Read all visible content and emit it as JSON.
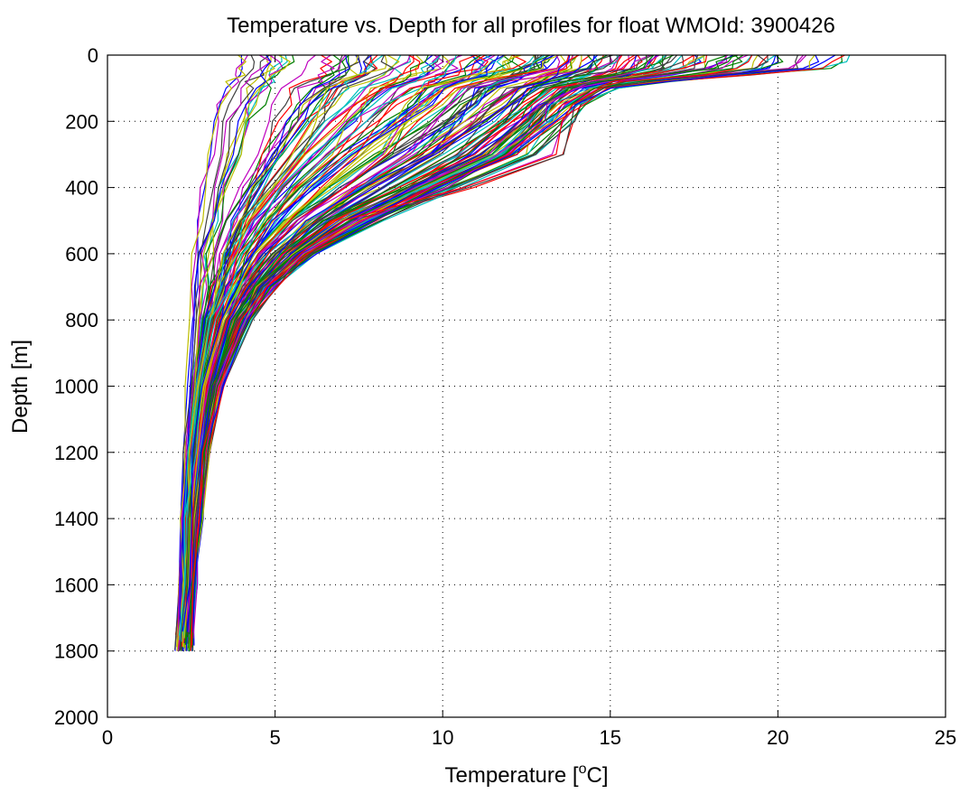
{
  "chart_data": {
    "type": "line",
    "title": "Temperature vs. Depth for all profiles for float WMOId: 3900426",
    "xlabel_text": "Temperature [",
    "xlabel_superscript": "o",
    "xlabel_unit": "C]",
    "ylabel": "Depth [m]",
    "xlim": [
      0,
      25
    ],
    "ylim": [
      0,
      2000
    ],
    "y_reversed": true,
    "grid": true,
    "x_ticks": [
      0,
      5,
      10,
      15,
      20,
      25
    ],
    "y_ticks": [
      0,
      200,
      400,
      600,
      800,
      1000,
      1200,
      1400,
      1600,
      1800,
      2000
    ],
    "series_colors": [
      "#0000ff",
      "#008000",
      "#ff0000",
      "#00bfbf",
      "#bf00bf",
      "#bfbf00",
      "#404040"
    ],
    "profile_depths": [
      0,
      20,
      40,
      60,
      80,
      100,
      150,
      200,
      300,
      400,
      500,
      600,
      700,
      800,
      1000,
      1200,
      1400,
      1600,
      1800
    ],
    "profiles_summary": {
      "approx_profile_count": 170,
      "surface_temperature_range": [
        3.8,
        21.9
      ],
      "deep_temperature_range_1800m": [
        2.0,
        3.2
      ],
      "max_depth_range": [
        1740,
        1810
      ]
    },
    "series": [
      {
        "temps": [
          20.1,
          19.9,
          19.7,
          18.5,
          15.8,
          14.2,
          13.6,
          13.2,
          12.0,
          9.6,
          7.6,
          5.9,
          4.8,
          4.1,
          3.3,
          2.9,
          2.7,
          2.6,
          2.5
        ],
        "max_depth": 1800
      },
      {
        "temps": [
          21.9,
          21.8,
          21.5,
          19.0,
          16.8,
          15.1,
          14.0,
          13.5,
          12.1,
          9.8,
          7.9,
          6.1,
          4.9,
          4.2,
          3.4,
          3.0,
          2.8,
          2.6,
          2.5
        ],
        "max_depth": 1790
      },
      {
        "temps": [
          19.6,
          19.5,
          19.3,
          17.9,
          15.5,
          14.8,
          14.1,
          13.9,
          13.6,
          11.0,
          7.3,
          5.8,
          4.7,
          4.0,
          3.3,
          2.9,
          2.7,
          2.6,
          2.5
        ],
        "max_depth": 1780
      },
      {
        "temps": [
          17.2,
          17.0,
          16.8,
          16.2,
          15.6,
          14.9,
          14.3,
          13.8,
          12.8,
          10.5,
          8.2,
          6.2,
          5.0,
          4.3,
          3.4,
          3.0,
          2.8,
          2.6,
          2.4
        ],
        "max_depth": 1795
      },
      {
        "temps": [
          15.3,
          15.2,
          15.1,
          14.7,
          14.0,
          13.4,
          12.9,
          12.2,
          10.6,
          8.5,
          6.8,
          5.4,
          4.5,
          3.9,
          3.2,
          2.8,
          2.6,
          2.5,
          2.4
        ],
        "max_depth": 1800
      },
      {
        "temps": [
          13.9,
          13.8,
          13.6,
          13.2,
          12.8,
          12.3,
          11.8,
          11.0,
          9.4,
          7.6,
          6.1,
          5.0,
          4.2,
          3.7,
          3.1,
          2.8,
          2.6,
          2.5,
          2.4
        ],
        "max_depth": 1790
      },
      {
        "temps": [
          12.8,
          12.7,
          12.5,
          12.2,
          11.9,
          11.5,
          10.9,
          10.2,
          8.6,
          7.0,
          5.7,
          4.7,
          4.0,
          3.5,
          3.0,
          2.7,
          2.5,
          2.4,
          2.3
        ],
        "max_depth": 1805
      },
      {
        "temps": [
          11.6,
          11.5,
          11.4,
          11.1,
          10.7,
          10.2,
          9.5,
          8.8,
          7.3,
          6.1,
          5.1,
          4.3,
          3.8,
          3.4,
          2.9,
          2.6,
          2.5,
          2.4,
          2.3
        ],
        "max_depth": 1795
      },
      {
        "temps": [
          10.4,
          10.3,
          10.2,
          10.0,
          9.6,
          9.1,
          8.4,
          7.7,
          6.5,
          5.5,
          4.7,
          4.0,
          3.6,
          3.2,
          2.8,
          2.6,
          2.4,
          2.3,
          2.2
        ],
        "max_depth": 1800
      },
      {
        "temps": [
          9.2,
          9.1,
          9.0,
          8.8,
          8.4,
          7.9,
          7.3,
          6.7,
          5.8,
          5.0,
          4.3,
          3.8,
          3.4,
          3.1,
          2.7,
          2.5,
          2.4,
          2.3,
          2.2
        ],
        "max_depth": 1790
      },
      {
        "temps": [
          7.9,
          7.9,
          7.8,
          7.6,
          7.2,
          6.8,
          6.3,
          5.9,
          5.2,
          4.6,
          4.0,
          3.6,
          3.3,
          3.0,
          2.7,
          2.5,
          2.4,
          2.3,
          2.2
        ],
        "max_depth": 1800
      },
      {
        "temps": [
          6.1,
          6.1,
          6.0,
          5.9,
          5.6,
          5.3,
          5.0,
          4.8,
          4.4,
          4.0,
          3.6,
          3.3,
          3.1,
          2.9,
          2.6,
          2.4,
          2.3,
          2.2,
          2.1
        ],
        "max_depth": 1795
      },
      {
        "temps": [
          4.9,
          4.9,
          4.9,
          4.8,
          4.6,
          4.4,
          4.2,
          4.0,
          3.7,
          3.4,
          3.2,
          3.0,
          2.9,
          2.8,
          2.6,
          2.4,
          2.3,
          2.2,
          2.1
        ],
        "max_depth": 1800
      },
      {
        "temps": [
          4.4,
          4.4,
          4.4,
          4.3,
          4.1,
          3.9,
          3.7,
          3.5,
          3.3,
          3.1,
          2.9,
          2.8,
          2.7,
          2.6,
          2.5,
          2.3,
          2.2,
          2.2,
          2.1
        ],
        "max_depth": 1805
      },
      {
        "temps": [
          4.0,
          4.0,
          4.0,
          3.9,
          3.7,
          3.5,
          3.3,
          3.1,
          3.0,
          2.8,
          2.7,
          2.7,
          2.6,
          2.5,
          2.4,
          2.3,
          2.2,
          2.1,
          2.0
        ],
        "max_depth": 1800
      },
      {
        "temps": [
          18.6,
          18.4,
          18.0,
          16.5,
          14.9,
          13.8,
          13.0,
          12.4,
          11.3,
          9.1,
          7.2,
          5.6,
          4.6,
          4.0,
          3.2,
          2.9,
          2.7,
          2.6,
          2.5
        ],
        "max_depth": 1785
      },
      {
        "temps": [
          16.4,
          16.3,
          16.1,
          15.5,
          14.7,
          13.9,
          13.3,
          12.9,
          11.8,
          10.0,
          7.8,
          6.0,
          4.9,
          4.2,
          3.3,
          2.9,
          2.7,
          2.6,
          2.5
        ],
        "max_depth": 1790
      },
      {
        "temps": [
          14.6,
          14.5,
          14.3,
          13.9,
          13.3,
          12.8,
          12.1,
          11.5,
          10.0,
          8.2,
          6.5,
          5.2,
          4.4,
          3.8,
          3.1,
          2.8,
          2.6,
          2.5,
          2.4
        ],
        "max_depth": 1800
      }
    ]
  }
}
